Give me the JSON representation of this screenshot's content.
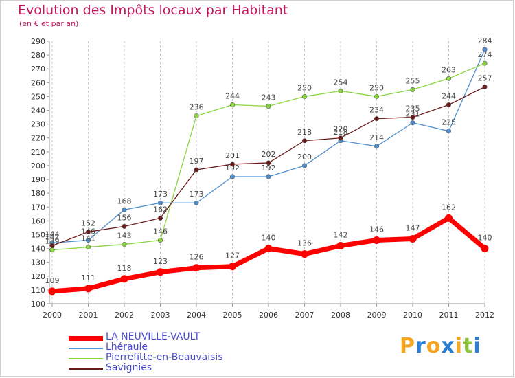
{
  "chart_data": {
    "type": "line",
    "title": "Evolution des Impôts locaux par Habitant",
    "subtitle": "(en € et par an)",
    "x": [
      "2000",
      "2001",
      "2002",
      "2003",
      "2004",
      "2005",
      "2006",
      "2007",
      "2008",
      "2009",
      "2010",
      "2011",
      "2012"
    ],
    "ylim": [
      100,
      290
    ],
    "yticks": [
      100,
      110,
      120,
      130,
      140,
      150,
      160,
      170,
      180,
      190,
      200,
      210,
      220,
      230,
      240,
      250,
      260,
      270,
      280,
      290
    ],
    "grid": "vertical dashed",
    "legend_position": "bottom-left",
    "series": [
      {
        "name": "LA NEUVILLE-VAULT",
        "color": "#ff0000",
        "values": [
          109,
          111,
          118,
          123,
          126,
          127,
          140,
          136,
          142,
          146,
          147,
          162,
          140
        ]
      },
      {
        "name": "Lhéraule",
        "color": "#4f8fcf",
        "values": [
          144,
          146,
          168,
          173,
          173,
          192,
          192,
          200,
          218,
          214,
          231,
          225,
          284
        ]
      },
      {
        "name": "Pierrefitte-en-Beauvaisis",
        "color": "#8ad63f",
        "values": [
          139,
          141,
          143,
          146,
          236,
          244,
          243,
          250,
          254,
          250,
          255,
          263,
          274
        ]
      },
      {
        "name": "Savignies",
        "color": "#6b1a1a",
        "values": [
          142,
          152,
          156,
          162,
          197,
          201,
          202,
          218,
          220,
          234,
          235,
          244,
          257
        ]
      }
    ]
  },
  "logo": {
    "letters": [
      "P",
      "r",
      "o",
      "x",
      "i",
      "t",
      "i"
    ],
    "colors": [
      "#f5a623",
      "#2a7fd4",
      "#f5a623",
      "#2a7fd4",
      "#f5a623",
      "#8ac43f",
      "#2a7fd4"
    ]
  }
}
